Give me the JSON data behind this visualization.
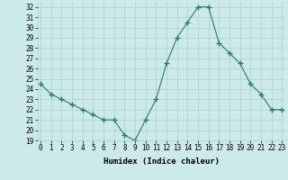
{
  "x": [
    0,
    1,
    2,
    3,
    4,
    5,
    6,
    7,
    8,
    9,
    10,
    11,
    12,
    13,
    14,
    15,
    16,
    17,
    18,
    19,
    20,
    21,
    22,
    23
  ],
  "y": [
    24.5,
    23.5,
    23.0,
    22.5,
    22.0,
    21.5,
    21.0,
    21.0,
    19.5,
    19.0,
    21.0,
    23.0,
    26.5,
    29.0,
    30.5,
    32.0,
    32.0,
    28.5,
    27.5,
    26.5,
    24.5,
    23.5,
    22.0,
    22.0
  ],
  "line_color": "#2d7a6a",
  "marker": "+",
  "marker_size": 4,
  "bg_color": "#cceaea",
  "grid_color": "#aacfcf",
  "xlabel": "Humidex (Indice chaleur)",
  "ylim": [
    19,
    32.5
  ],
  "xlim": [
    -0.3,
    23.3
  ],
  "yticks": [
    19,
    20,
    21,
    22,
    23,
    24,
    25,
    26,
    27,
    28,
    29,
    30,
    31,
    32
  ],
  "xticks": [
    0,
    1,
    2,
    3,
    4,
    5,
    6,
    7,
    8,
    9,
    10,
    11,
    12,
    13,
    14,
    15,
    16,
    17,
    18,
    19,
    20,
    21,
    22,
    23
  ],
  "xlabel_fontsize": 6.5,
  "tick_fontsize": 5.5
}
